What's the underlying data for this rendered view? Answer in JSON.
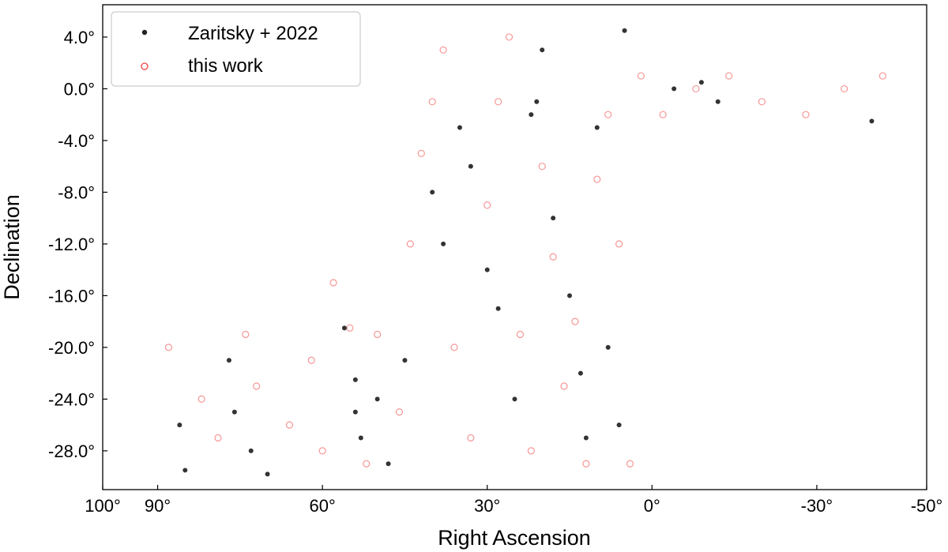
{
  "chart_data": {
    "type": "scatter",
    "title": "",
    "xlabel": "Right Ascension",
    "ylabel": "Declination",
    "xlim": [
      100,
      -50
    ],
    "ylim": [
      -31,
      6.5
    ],
    "x_inverted": true,
    "grid": false,
    "legend_position": "top-left",
    "x_ticks": [
      {
        "value": 100,
        "label": "100°"
      },
      {
        "value": 90,
        "label": "90°"
      },
      {
        "value": 60,
        "label": "60°"
      },
      {
        "value": 30,
        "label": "30°"
      },
      {
        "value": 0,
        "label": "0°"
      },
      {
        "value": -30,
        "label": "-30°"
      },
      {
        "value": -50,
        "label": "-50°"
      }
    ],
    "y_ticks": [
      {
        "value": 4,
        "label": "4.0°"
      },
      {
        "value": 0,
        "label": "0.0°"
      },
      {
        "value": -4,
        "label": "-4.0°"
      },
      {
        "value": -8,
        "label": "-8.0°"
      },
      {
        "value": -12,
        "label": "-12.0°"
      },
      {
        "value": -16,
        "label": "-16.0°"
      },
      {
        "value": -20,
        "label": "-20.0°"
      },
      {
        "value": -24,
        "label": "-24.0°"
      },
      {
        "value": -28,
        "label": "-28.0°"
      }
    ],
    "series": [
      {
        "name": "Zaritsky + 2022",
        "marker": "filled-circle",
        "color": "#000000",
        "points": [
          [
            86,
            -26
          ],
          [
            85,
            -29.5
          ],
          [
            77,
            -21
          ],
          [
            76,
            -25
          ],
          [
            73,
            -28
          ],
          [
            70,
            -29.8
          ],
          [
            56,
            -18.5
          ],
          [
            54,
            -22.5
          ],
          [
            54,
            -25
          ],
          [
            53,
            -27
          ],
          [
            50,
            -24
          ],
          [
            48,
            -29
          ],
          [
            45,
            -21
          ],
          [
            40,
            -8
          ],
          [
            38,
            -12
          ],
          [
            35,
            -3
          ],
          [
            33,
            -6
          ],
          [
            30,
            -14
          ],
          [
            28,
            -17
          ],
          [
            25,
            -24
          ],
          [
            22,
            -2
          ],
          [
            21,
            -1
          ],
          [
            20,
            3
          ],
          [
            18,
            -10
          ],
          [
            15,
            -16
          ],
          [
            13,
            -22
          ],
          [
            12,
            -27
          ],
          [
            10,
            -3
          ],
          [
            8,
            -20
          ],
          [
            6,
            -26
          ],
          [
            5,
            4.5
          ],
          [
            -4,
            0
          ],
          [
            -9,
            0.5
          ],
          [
            -12,
            -1
          ],
          [
            -40,
            -2.5
          ]
        ]
      },
      {
        "name": "this work",
        "marker": "open-circle",
        "color": "#f04040",
        "points": [
          [
            88,
            -20
          ],
          [
            82,
            -24
          ],
          [
            79,
            -27
          ],
          [
            74,
            -19
          ],
          [
            72,
            -23
          ],
          [
            66,
            -26
          ],
          [
            62,
            -21
          ],
          [
            60,
            -28
          ],
          [
            58,
            -15
          ],
          [
            55,
            -18.5
          ],
          [
            52,
            -29
          ],
          [
            50,
            -19
          ],
          [
            46,
            -25
          ],
          [
            44,
            -12
          ],
          [
            42,
            -5
          ],
          [
            40,
            -1
          ],
          [
            38,
            3
          ],
          [
            36,
            -20
          ],
          [
            33,
            -27
          ],
          [
            30,
            -9
          ],
          [
            28,
            -1
          ],
          [
            26,
            4
          ],
          [
            24,
            -19
          ],
          [
            22,
            -28
          ],
          [
            20,
            -6
          ],
          [
            18,
            -13
          ],
          [
            16,
            -23
          ],
          [
            14,
            -18
          ],
          [
            12,
            -29
          ],
          [
            10,
            -7
          ],
          [
            8,
            -2
          ],
          [
            6,
            -12
          ],
          [
            4,
            -29
          ],
          [
            2,
            1
          ],
          [
            -2,
            -2
          ],
          [
            -8,
            0
          ],
          [
            -14,
            1
          ],
          [
            -20,
            -1
          ],
          [
            -28,
            -2
          ],
          [
            -35,
            0
          ],
          [
            -42,
            1
          ]
        ]
      }
    ]
  }
}
